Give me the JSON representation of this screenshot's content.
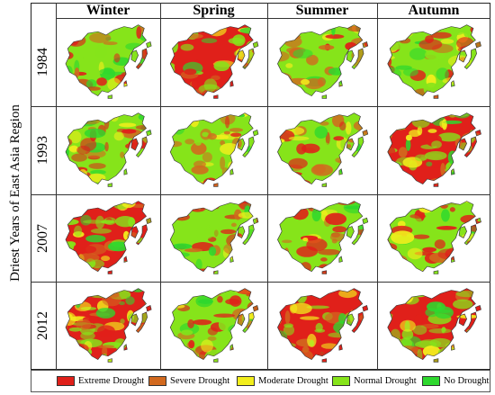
{
  "figure": {
    "side_title": "Driest Years of  East Asia Region",
    "seasons": [
      "Winter",
      "Spring",
      "Summer",
      "Autumn"
    ],
    "years": [
      "1984",
      "1993",
      "2007",
      "2012"
    ],
    "colors": {
      "extreme": "#e0201a",
      "severe": "#d2691e",
      "moderate": "#f2ee1c",
      "normal": "#86e41a",
      "none": "#2ed82e"
    },
    "maps": [
      {
        "year": "1984",
        "season": "Winter",
        "dominant": "normal",
        "secondary": "extreme"
      },
      {
        "year": "1984",
        "season": "Spring",
        "dominant": "extreme",
        "secondary": "normal"
      },
      {
        "year": "1984",
        "season": "Summer",
        "dominant": "normal",
        "secondary": "severe"
      },
      {
        "year": "1984",
        "season": "Autumn",
        "dominant": "normal",
        "secondary": "extreme"
      },
      {
        "year": "1993",
        "season": "Winter",
        "dominant": "normal",
        "secondary": "extreme"
      },
      {
        "year": "1993",
        "season": "Spring",
        "dominant": "normal",
        "secondary": "severe"
      },
      {
        "year": "1993",
        "season": "Summer",
        "dominant": "normal",
        "secondary": "severe"
      },
      {
        "year": "1993",
        "season": "Autumn",
        "dominant": "extreme",
        "secondary": "normal"
      },
      {
        "year": "2007",
        "season": "Winter",
        "dominant": "extreme",
        "secondary": "normal"
      },
      {
        "year": "2007",
        "season": "Spring",
        "dominant": "normal",
        "secondary": "extreme"
      },
      {
        "year": "2007",
        "season": "Summer",
        "dominant": "normal",
        "secondary": "extreme"
      },
      {
        "year": "2007",
        "season": "Autumn",
        "dominant": "normal",
        "secondary": "extreme"
      },
      {
        "year": "2012",
        "season": "Winter",
        "dominant": "extreme",
        "secondary": "normal"
      },
      {
        "year": "2012",
        "season": "Spring",
        "dominant": "normal",
        "secondary": "extreme"
      },
      {
        "year": "2012",
        "season": "Summer",
        "dominant": "extreme",
        "secondary": "normal"
      },
      {
        "year": "2012",
        "season": "Autumn",
        "dominant": "extreme",
        "secondary": "normal"
      }
    ]
  },
  "legend": {
    "items": [
      {
        "label": "Extreme Drought",
        "color": "#e0201a"
      },
      {
        "label": "Severe Drought",
        "color": "#d2691e"
      },
      {
        "label": "Moderate Drought",
        "color": "#f2ee1c"
      },
      {
        "label": "Normal Drought",
        "color": "#86e41a"
      },
      {
        "label": "No Drought",
        "color": "#2ed82e"
      }
    ]
  }
}
